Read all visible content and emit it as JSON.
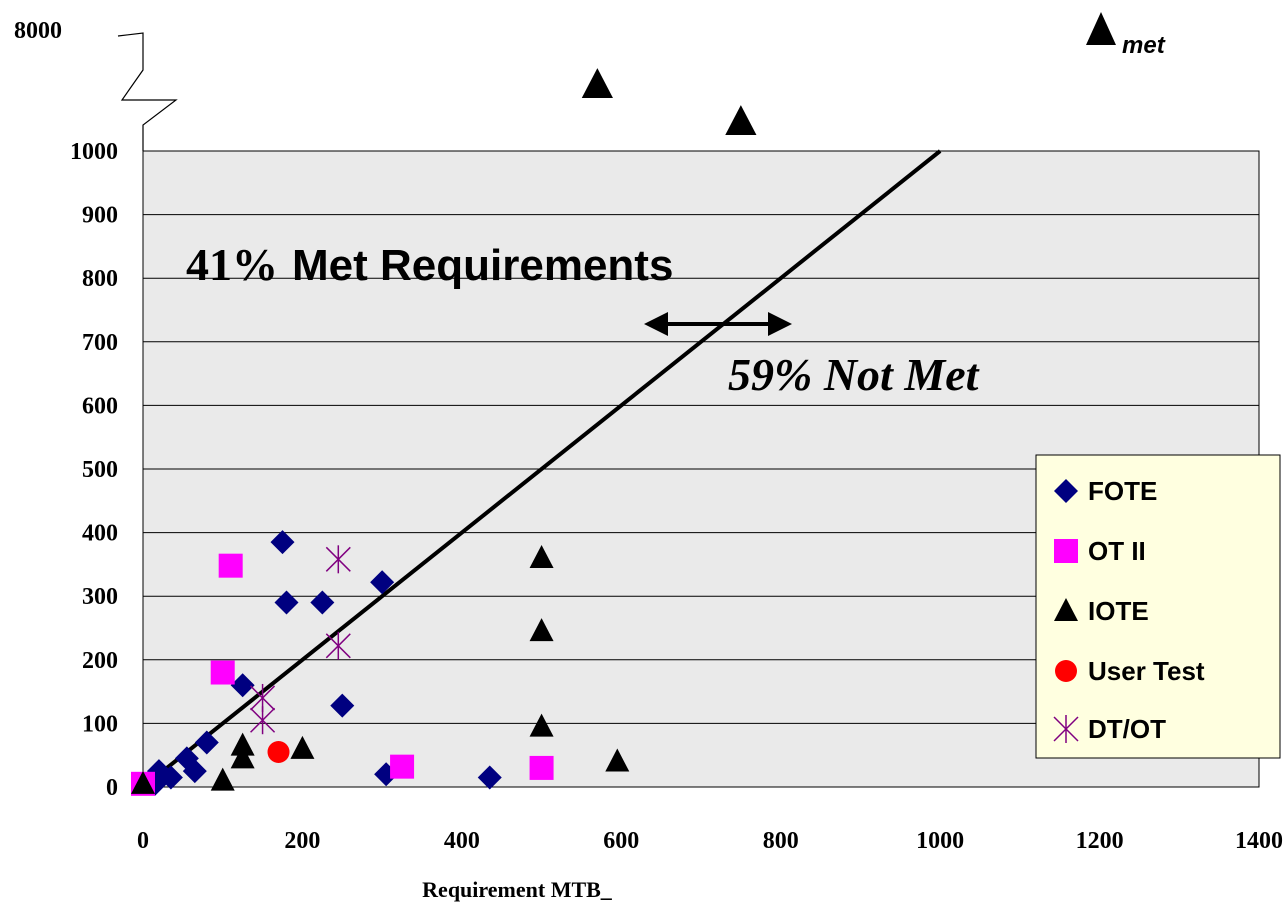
{
  "chart_data": {
    "type": "scatter",
    "xlabel": "Requirement MTB_",
    "ylabel": "",
    "xlim": [
      0,
      1400
    ],
    "ylim": [
      0,
      1000
    ],
    "x_ticks": [
      0,
      200,
      400,
      600,
      800,
      1000,
      1200,
      1400
    ],
    "y_ticks": [
      0,
      100,
      200,
      300,
      400,
      500,
      600,
      700,
      800,
      900,
      1000
    ],
    "y_break_label": "8000",
    "grid": "horizontal",
    "legend_position": "right",
    "reference_line": {
      "x": [
        0,
        1000
      ],
      "y": [
        0,
        1000
      ]
    },
    "annotations": {
      "met_pct": "41%",
      "met_text": "Met Requirements",
      "not_met": "59% Not Met",
      "corner_label": "met"
    },
    "series": [
      {
        "name": "FOTE",
        "marker": "diamond",
        "color": "#000080",
        "points": [
          [
            15,
            5
          ],
          [
            20,
            25
          ],
          [
            35,
            15
          ],
          [
            55,
            45
          ],
          [
            65,
            25
          ],
          [
            80,
            70
          ],
          [
            125,
            160
          ],
          [
            175,
            385
          ],
          [
            180,
            290
          ],
          [
            225,
            290
          ],
          [
            250,
            128
          ],
          [
            300,
            322
          ],
          [
            305,
            20
          ],
          [
            435,
            15
          ]
        ]
      },
      {
        "name": "OT II",
        "marker": "square",
        "color": "#ff00ff",
        "points": [
          [
            0,
            5
          ],
          [
            100,
            180
          ],
          [
            110,
            348
          ],
          [
            325,
            32
          ],
          [
            500,
            30
          ]
        ]
      },
      {
        "name": "IOTE",
        "marker": "triangle",
        "color": "#000000",
        "points": [
          [
            0,
            5
          ],
          [
            100,
            10
          ],
          [
            125,
            45
          ],
          [
            125,
            65
          ],
          [
            200,
            60
          ],
          [
            500,
            360
          ],
          [
            500,
            245
          ],
          [
            500,
            95
          ],
          [
            595,
            40
          ]
        ]
      },
      {
        "name": "User Test",
        "marker": "circle",
        "color": "#ff0000",
        "points": [
          [
            170,
            55
          ]
        ]
      },
      {
        "name": "DT/OT",
        "marker": "asterisk",
        "color": "#800080",
        "points": [
          [
            150,
            140
          ],
          [
            150,
            105
          ],
          [
            245,
            358
          ],
          [
            245,
            222
          ]
        ]
      }
    ],
    "off_scale_points": [
      {
        "series": "IOTE",
        "x": 570,
        "label": "above 1000"
      },
      {
        "series": "IOTE",
        "x": 750,
        "label": "above 1000"
      }
    ]
  }
}
